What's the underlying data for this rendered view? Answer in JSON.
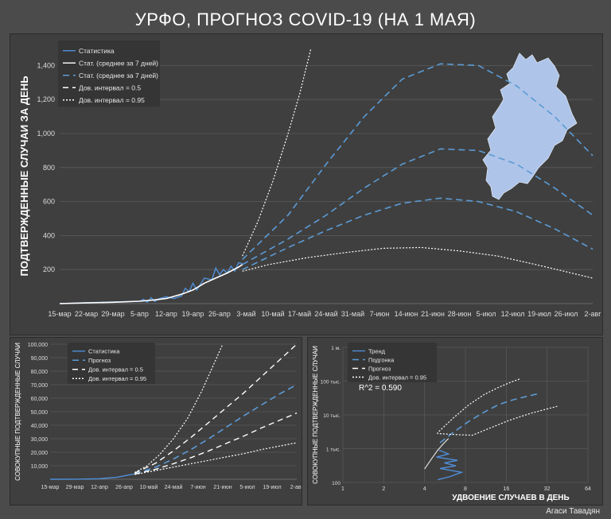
{
  "title": "УРФО, ПРОГНОЗ COVID-19 (НА 1 МАЯ)",
  "credit": "Агаси Тавадян",
  "colors": {
    "stat": "#4f8fd9",
    "avg": "#ffffff",
    "forecast": "#5b9bd5",
    "ci": "#ffffff",
    "grid": "#5a5a5a",
    "map": "#aec4e8"
  },
  "chart_data": [
    {
      "type": "line",
      "ylabel": "ПОДТВЕРЖДЕННЫЕ СЛУЧАИ ЗА ДЕНЬ",
      "ylim": [
        0,
        1500
      ],
      "yticks": [
        "200",
        "400",
        "600",
        "800",
        "1,000",
        "1,200",
        "1,400"
      ],
      "xtick_labels": [
        "15-мар",
        "22-мар",
        "29-мар",
        "5-апр",
        "12-апр",
        "19-апр",
        "26-апр",
        "3-май",
        "10-май",
        "17-май",
        "24-май",
        "31-май",
        "7-июн",
        "14-июн",
        "21-июн",
        "28-июн",
        "5-июл",
        "12-июл",
        "19-июл",
        "26-июл",
        "2-авг"
      ],
      "legend": [
        "Статистика",
        "Стат. (среднее за 7 дней)",
        "Стат. (среднее за 7 дней)",
        "Дов. интервал = 0.5",
        "Дов. интервал = 0.95"
      ],
      "series": [
        {
          "name": "Статистика",
          "day_x": [
            0,
            7,
            14,
            21,
            22,
            23,
            24,
            25,
            26,
            28,
            30,
            32,
            33,
            34,
            35,
            36,
            38,
            40,
            41,
            42,
            43,
            44,
            45,
            46,
            47,
            48
          ],
          "values": [
            0,
            5,
            10,
            14,
            25,
            8,
            35,
            12,
            28,
            40,
            30,
            45,
            90,
            70,
            120,
            80,
            150,
            140,
            210,
            170,
            200,
            180,
            220,
            190,
            240,
            235
          ]
        },
        {
          "name": "Стат. (среднее за 7 дней)",
          "day_x": [
            0,
            7,
            14,
            21,
            25,
            28,
            32,
            35,
            38,
            41,
            44,
            47,
            48
          ],
          "values": [
            0,
            4,
            8,
            14,
            22,
            30,
            55,
            80,
            120,
            150,
            180,
            215,
            230
          ]
        },
        {
          "name": "Прогноз",
          "day_x": [
            48,
            60,
            70,
            80,
            90,
            100,
            110,
            120,
            130,
            140
          ],
          "values": [
            230,
            380,
            520,
            680,
            820,
            910,
            900,
            820,
            680,
            520
          ]
        },
        {
          "name": "Прогноз (вверх)",
          "day_x": [
            48,
            60,
            70,
            80,
            90,
            100,
            110,
            120,
            130,
            140
          ],
          "values": [
            260,
            520,
            820,
            1100,
            1320,
            1410,
            1400,
            1280,
            1100,
            870
          ]
        },
        {
          "name": "Прогноз (вниз)",
          "day_x": [
            48,
            60,
            70,
            80,
            90,
            100,
            110,
            120,
            130,
            140
          ],
          "values": [
            200,
            330,
            430,
            520,
            590,
            620,
            600,
            540,
            440,
            320
          ]
        },
        {
          "name": "Дов. интервал = 0.95 (верх)",
          "day_x": [
            48,
            52,
            56,
            60,
            63,
            66
          ],
          "values": [
            280,
            480,
            720,
            1000,
            1230,
            1500
          ]
        },
        {
          "name": "Дов. интервал = 0.95 (низ)",
          "day_x": [
            48,
            55,
            65,
            75,
            85,
            95,
            105,
            115,
            125,
            140
          ],
          "values": [
            190,
            230,
            270,
            300,
            325,
            330,
            310,
            280,
            230,
            150
          ]
        }
      ]
    },
    {
      "type": "line",
      "ylabel": "СОВОКУПНЫЕ ПОДТВЕРЖДЕННЫЕ СЛУЧАИ",
      "ylim": [
        0,
        100000
      ],
      "yticks": [
        "10,000",
        "20,000",
        "30,000",
        "40,000",
        "50,000",
        "60,000",
        "70,000",
        "80,000",
        "90,000",
        "100,000"
      ],
      "xtick_labels": [
        "15-мар",
        "29-мар",
        "12-апр",
        "26-апр",
        "10-май",
        "24-май",
        "7-июн",
        "21-июн",
        "5-июл",
        "19-июл",
        "2-авг"
      ],
      "legend": [
        "Статистика",
        "Прогноз",
        "Дов. интервал = 0.5",
        "Дов. интервал = 0.95"
      ],
      "series": [
        {
          "name": "Статистика",
          "day_x": [
            0,
            14,
            28,
            38,
            44,
            48
          ],
          "values": [
            0,
            50,
            400,
            1500,
            3000,
            4000
          ]
        },
        {
          "name": "Прогноз",
          "day_x": [
            48,
            60,
            70,
            80,
            90,
            100,
            110,
            120,
            130,
            140
          ],
          "values": [
            4000,
            9000,
            15000,
            22000,
            30000,
            38500,
            47000,
            55000,
            63000,
            70000
          ]
        },
        {
          "name": "Дов. интервал = 0.5 (верх)",
          "day_x": [
            48,
            60,
            70,
            80,
            90,
            100,
            110,
            120,
            130,
            140
          ],
          "values": [
            4500,
            12000,
            21000,
            31000,
            42000,
            53000,
            64000,
            76000,
            88000,
            100000
          ]
        },
        {
          "name": "Дов. интервал = 0.5 (низ)",
          "day_x": [
            48,
            60,
            70,
            80,
            90,
            100,
            110,
            120,
            130,
            140
          ],
          "values": [
            3800,
            7500,
            11500,
            16000,
            21000,
            26500,
            32000,
            38000,
            43500,
            49000
          ]
        },
        {
          "name": "Дов. интервал = 0.95 (верх)",
          "day_x": [
            48,
            55,
            62,
            70,
            78,
            86,
            98
          ],
          "values": [
            5000,
            10000,
            18000,
            30000,
            45000,
            65000,
            100000
          ]
        },
        {
          "name": "Дов. интервал = 0.95 (низ)",
          "day_x": [
            48,
            60,
            70,
            80,
            90,
            100,
            110,
            120,
            130,
            140
          ],
          "values": [
            3500,
            6500,
            9000,
            11500,
            14000,
            16500,
            19000,
            22000,
            24500,
            27000
          ]
        }
      ]
    },
    {
      "type": "scatter",
      "xlabel": "УДВОЕНИЕ СЛУЧАЕВ В ДЕНЬ",
      "ylabel": "СОВОКУПНЫЕ ПОДТВЕРЖДЕННЫЕ СЛУЧАИ",
      "xscale": "log",
      "yscale": "log",
      "xlim": [
        1,
        64
      ],
      "ylim": [
        100,
        1000000
      ],
      "xticks": [
        "1",
        "2",
        "4",
        "8",
        "16",
        "32",
        "64"
      ],
      "yticks": [
        "100",
        "1 тыс.",
        "10 тыс.",
        "100 тыс.",
        "1 м."
      ],
      "legend": [
        "Тренд",
        "Подгонка",
        "Прогноз",
        "Дов. интервал = 0.95"
      ],
      "annotation": "R^2 = 0.590",
      "series": [
        {
          "name": "Тренд",
          "x": [
            5.0,
            6.2,
            7.5,
            5.2,
            6.8,
            5.6,
            7.0,
            4.9,
            6.0,
            5.1
          ],
          "y": [
            120,
            150,
            200,
            260,
            310,
            380,
            450,
            560,
            700,
            900
          ]
        },
        {
          "name": "Подгонка",
          "x": [
            4.0,
            4.5,
            5.0,
            5.5,
            6.0
          ],
          "y": [
            250,
            500,
            900,
            1400,
            2000
          ]
        },
        {
          "name": "Прогноз",
          "x": [
            5.2,
            6.5,
            8.5,
            11,
            14,
            18,
            23,
            28
          ],
          "y": [
            1500,
            3000,
            6500,
            12000,
            20000,
            28000,
            36000,
            43000
          ]
        },
        {
          "name": "Дов. интервал = 0.95 (верх)",
          "x": [
            5.0,
            6.5,
            8.5,
            11,
            14,
            17,
            20
          ],
          "y": [
            3000,
            8000,
            20000,
            40000,
            65000,
            90000,
            115000
          ]
        },
        {
          "name": "Дов. интервал = 0.95 (низ)",
          "x": [
            5.0,
            7.0,
            9.0,
            12,
            17,
            24,
            32,
            38
          ],
          "y": [
            2800,
            2600,
            2500,
            4000,
            7000,
            11000,
            15000,
            18000
          ]
        }
      ]
    }
  ]
}
